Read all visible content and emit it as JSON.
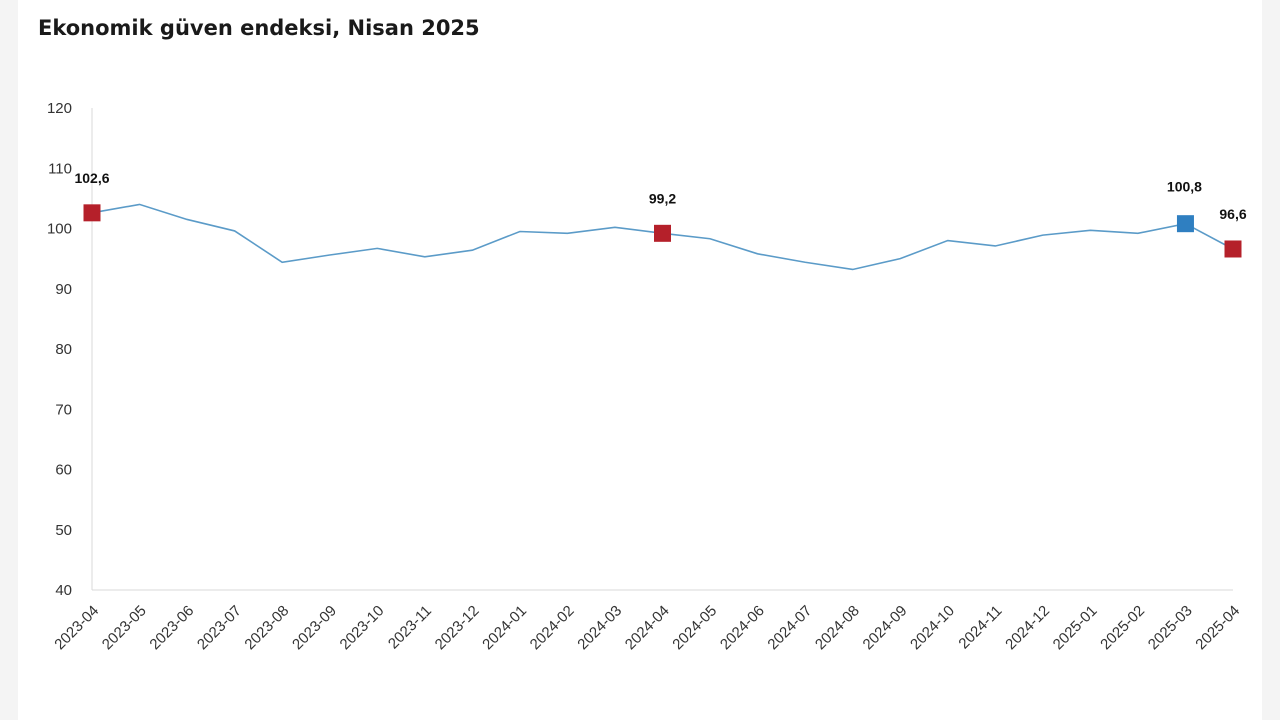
{
  "title": "Ekonomik güven endeksi, Nisan 2025",
  "colors": {
    "line": "#5b9bc8",
    "axis": "#d9d9d9",
    "marker_red": "#b5202a",
    "marker_blue": "#2f7fc1"
  },
  "chart_data": {
    "type": "line",
    "title": "Ekonomik güven endeksi, Nisan 2025",
    "xlabel": "",
    "ylabel": "",
    "ylim": [
      40,
      120
    ],
    "y_ticks": [
      "40",
      "50",
      "60",
      "70",
      "80",
      "90",
      "100",
      "110",
      "120"
    ],
    "grid": false,
    "legend": "none",
    "categories": [
      "2023-04",
      "2023-05",
      "2023-06",
      "2023-07",
      "2023-08",
      "2023-09",
      "2023-10",
      "2023-11",
      "2023-12",
      "2024-01",
      "2024-02",
      "2024-03",
      "2024-04",
      "2024-05",
      "2024-06",
      "2024-07",
      "2024-08",
      "2024-09",
      "2024-10",
      "2024-11",
      "2024-12",
      "2025-01",
      "2025-02",
      "2025-03",
      "2025-04"
    ],
    "values": [
      102.6,
      104.0,
      101.5,
      99.6,
      94.4,
      95.6,
      96.7,
      95.3,
      96.4,
      99.5,
      99.2,
      100.2,
      99.2,
      98.3,
      95.8,
      94.4,
      93.2,
      95.0,
      98.0,
      97.1,
      98.9,
      99.7,
      99.2,
      100.8,
      96.6
    ],
    "highlights": [
      {
        "category": "2023-04",
        "value": 102.6,
        "label": "102,6",
        "color": "red"
      },
      {
        "category": "2024-04",
        "value": 99.2,
        "label": "99,2",
        "color": "red"
      },
      {
        "category": "2025-03",
        "value": 100.8,
        "label": "100,8",
        "color": "blue"
      },
      {
        "category": "2025-04",
        "value": 96.6,
        "label": "96,6",
        "color": "red"
      }
    ]
  }
}
